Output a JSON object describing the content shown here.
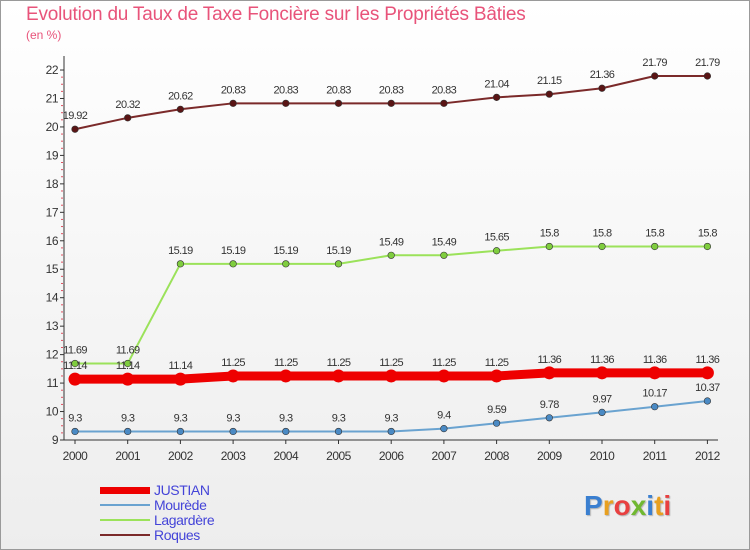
{
  "chart_data": {
    "type": "line",
    "title": "Evolution du Taux de Taxe Foncière sur les Propriétés Bâties",
    "unit_label": "(en %)",
    "xlabel": "",
    "ylabel": "(en %)",
    "categories": [
      "2000",
      "2001",
      "2002",
      "2003",
      "2004",
      "2005",
      "2006",
      "2007",
      "2008",
      "2009",
      "2010",
      "2011",
      "2012"
    ],
    "y_ticks": [
      9,
      10,
      11,
      12,
      13,
      14,
      15,
      16,
      17,
      18,
      19,
      20,
      21,
      22
    ],
    "ylim": [
      9,
      22
    ],
    "grid": false,
    "series": [
      {
        "name": "Roques",
        "color": "#7b2a2a",
        "marker": "#5a1515",
        "values": [
          19.92,
          20.32,
          20.62,
          20.83,
          20.83,
          20.83,
          20.83,
          20.83,
          21.04,
          21.15,
          21.36,
          21.79,
          21.79
        ],
        "labels": [
          "19.92",
          "20.32",
          "20.62",
          "20.83",
          "20.83",
          "20.83",
          "20.83",
          "20.83",
          "21.04",
          "21.15",
          "21.36",
          "21.79",
          "21.79"
        ]
      },
      {
        "name": "Lagardère",
        "color": "#9be25a",
        "marker": "#7fcd3e",
        "values": [
          11.69,
          11.69,
          15.19,
          15.19,
          15.19,
          15.19,
          15.49,
          15.49,
          15.65,
          15.8,
          15.8,
          15.8,
          15.8
        ],
        "labels": [
          "11.69",
          "11.69",
          "15.19",
          "15.19",
          "15.19",
          "15.19",
          "15.49",
          "15.49",
          "15.65",
          "15.8",
          "15.8",
          "15.8",
          "15.8"
        ]
      },
      {
        "name": "JUSTIAN",
        "color": "#ee0000",
        "marker": "#ee0000",
        "values": [
          11.14,
          11.14,
          11.14,
          11.25,
          11.25,
          11.25,
          11.25,
          11.25,
          11.25,
          11.36,
          11.36,
          11.36,
          11.36
        ],
        "labels": [
          "11.14",
          "11.14",
          "11.14",
          "11.25",
          "11.25",
          "11.25",
          "11.25",
          "11.25",
          "11.25",
          "11.36",
          "11.36",
          "11.36",
          "11.36"
        ]
      },
      {
        "name": "Mourède",
        "color": "#6aa3d0",
        "marker": "#4a8ac4",
        "values": [
          9.3,
          9.3,
          9.3,
          9.3,
          9.3,
          9.3,
          9.3,
          9.4,
          9.59,
          9.78,
          9.97,
          10.17,
          10.37
        ],
        "labels": [
          "9.3",
          "9.3",
          "9.3",
          "9.3",
          "9.3",
          "9.3",
          "9.3",
          "9.4",
          "9.59",
          "9.78",
          "9.97",
          "10.17",
          "10.37"
        ]
      }
    ]
  },
  "legend": {
    "items": [
      {
        "name": "JUSTIAN",
        "color": "#ee0000"
      },
      {
        "name": "Mourède",
        "color": "#6aa3d0"
      },
      {
        "name": "Lagardère",
        "color": "#9be25a"
      },
      {
        "name": "Roques",
        "color": "#7b2a2a"
      }
    ]
  },
  "logo": {
    "text": "Proxiti",
    "colors": [
      "#3a7fd0",
      "#e8a020",
      "#e84040",
      "#70b830",
      "#3a7fd0",
      "#e8a020",
      "#e84040"
    ]
  }
}
